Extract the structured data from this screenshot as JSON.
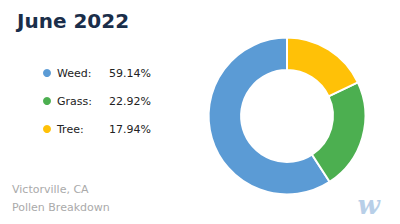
{
  "chart_data": {
    "type": "pie",
    "title": "June 2022",
    "categories": [
      "Weed:",
      "Grass:",
      "Tree:"
    ],
    "values": [
      59.14,
      22.92,
      17.94
    ],
    "value_labels": [
      "59.14%",
      "22.92%",
      "17.94%"
    ],
    "colors": [
      "#5b9bd5",
      "#4caf50",
      "#ffc107"
    ],
    "legend": "left",
    "annotations": [
      "Victorville, CA",
      "Pollen Breakdown",
      "w"
    ]
  }
}
